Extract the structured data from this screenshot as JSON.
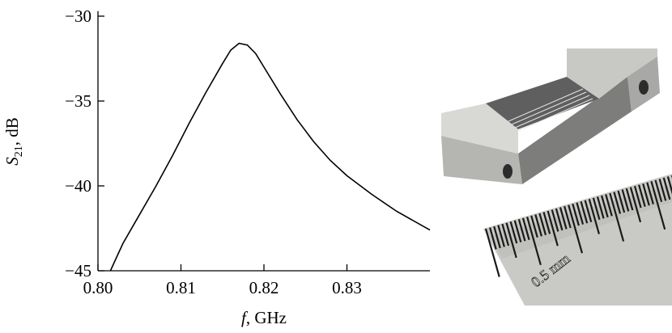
{
  "chart_data": {
    "type": "line",
    "xlabel": {
      "symbol": "f",
      "unit": ", GHz"
    },
    "ylabel": {
      "symbol": "S",
      "subscript": "21",
      "unit": ", dB"
    },
    "x": [
      0.8015,
      0.803,
      0.805,
      0.807,
      0.809,
      0.811,
      0.813,
      0.815,
      0.816,
      0.817,
      0.818,
      0.819,
      0.82,
      0.822,
      0.824,
      0.826,
      0.828,
      0.83,
      0.833,
      0.836,
      0.84
    ],
    "series": [
      {
        "color": "#000000",
        "values": [
          -45.0,
          -43.4,
          -41.7,
          -40.0,
          -38.2,
          -36.3,
          -34.5,
          -32.8,
          -32.0,
          -31.6,
          -31.7,
          -32.2,
          -33.0,
          -34.6,
          -36.1,
          -37.4,
          -38.5,
          -39.4,
          -40.5,
          -41.5,
          -42.6
        ]
      }
    ],
    "xlim": [
      0.8,
      0.84
    ],
    "ylim": [
      -45,
      -29.7
    ],
    "xticks": [
      {
        "value": 0.8,
        "label": "0.80"
      },
      0.81,
      0.82,
      0.83
    ],
    "yticks": [
      {
        "value": -45,
        "label": "−45"
      },
      {
        "value": -40,
        "label": "−40"
      },
      {
        "value": -35,
        "label": "−35"
      },
      {
        "value": -30,
        "label": "−30"
      }
    ],
    "annotations": [
      {
        "text": "0.5 mm"
      }
    ]
  }
}
